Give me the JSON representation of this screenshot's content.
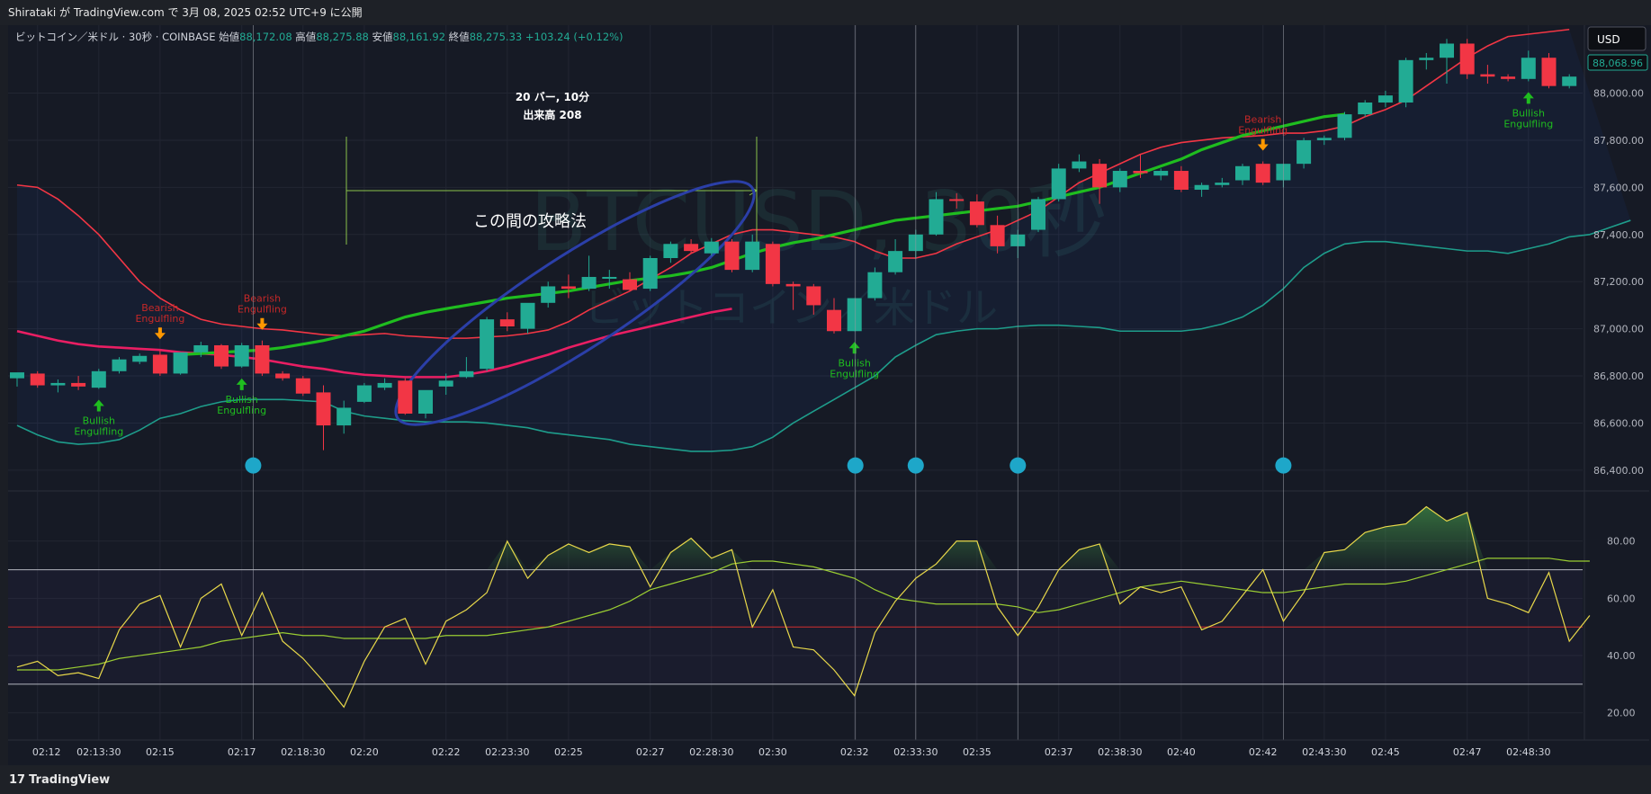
{
  "header": {
    "publish_line": "Shirataki が TradingView.com で 3月 08, 2025 02:52 UTC+9 に公開"
  },
  "legend": {
    "symbol": "ビットコイン／米ドル · 30秒 · COINBASE",
    "open_label": "始値",
    "open": "88,172.08",
    "high_label": "高値",
    "high": "88,275.88",
    "low_label": "安値",
    "low": "88,161.92",
    "close_label": "終値",
    "close": "88,275.33",
    "change": "+103.24 (+0.12%)"
  },
  "currency_button": "USD",
  "last_price_label": "88,068.96",
  "watermark": {
    "symbol": "BTCUSD, 30秒",
    "name": "ビットコイン／米ドル"
  },
  "measure_label": {
    "line1": "20 バー, 10分",
    "line2": "出来高 208"
  },
  "annotation_text": "この間の攻略法",
  "footer_brand": "TradingView",
  "colors": {
    "up": "#22ab94",
    "down": "#f23645",
    "bb_upper": "#f23645",
    "bb_lower": "#1e9d8b",
    "ma_green": "#1fbd1f",
    "ma_pink": "#e91e63",
    "rsi": "#e8d84a",
    "rsi_ma": "#9acd32",
    "bullish": "#1fbd1f",
    "bearish": "#c62828",
    "dot": "#1ea7c9",
    "ellipse": "#2b3fa8"
  },
  "chart_data": {
    "type": "candlestick",
    "symbol": "BTCUSD",
    "interval": "30秒",
    "price_axis": {
      "ticks": [
        86400,
        86600,
        86800,
        87000,
        87200,
        87400,
        87600,
        87800,
        88000
      ],
      "tick_labels": [
        "86,400.00",
        "86,600.00",
        "86,800.00",
        "87,000.00",
        "87,200.00",
        "87,400.00",
        "87,600.00",
        "87,800.00",
        "88,000.00"
      ],
      "range": [
        86350,
        88250
      ]
    },
    "time_axis_labels": [
      {
        "bar": 1,
        "label": "02:12"
      },
      {
        "bar": 4,
        "label": "02:13:30"
      },
      {
        "bar": 7,
        "label": "02:15"
      },
      {
        "bar": 11,
        "label": "02:17"
      },
      {
        "bar": 14,
        "label": "02:18:30"
      },
      {
        "bar": 17,
        "label": "02:20"
      },
      {
        "bar": 21,
        "label": "02:22"
      },
      {
        "bar": 24,
        "label": "02:23:30"
      },
      {
        "bar": 27,
        "label": "02:25"
      },
      {
        "bar": 31,
        "label": "02:27"
      },
      {
        "bar": 34,
        "label": "02:28:30"
      },
      {
        "bar": 37,
        "label": "02:30"
      },
      {
        "bar": 41,
        "label": "02:32"
      },
      {
        "bar": 44,
        "label": "02:33:30"
      },
      {
        "bar": 47,
        "label": "02:35"
      },
      {
        "bar": 51,
        "label": "02:37"
      },
      {
        "bar": 54,
        "label": "02:38:30"
      },
      {
        "bar": 57,
        "label": "02:40"
      },
      {
        "bar": 61,
        "label": "02:42"
      },
      {
        "bar": 64,
        "label": "02:43:30"
      },
      {
        "bar": 67,
        "label": "02:45"
      },
      {
        "bar": 71,
        "label": "02:47"
      },
      {
        "bar": 74,
        "label": "02:48:30"
      }
    ],
    "candles": [
      {
        "o": 86790,
        "h": 86810,
        "l": 86755,
        "c": 86815
      },
      {
        "o": 86810,
        "h": 86820,
        "l": 86750,
        "c": 86760
      },
      {
        "o": 86760,
        "h": 86785,
        "l": 86730,
        "c": 86770
      },
      {
        "o": 86770,
        "h": 86800,
        "l": 86740,
        "c": 86755
      },
      {
        "o": 86750,
        "h": 86830,
        "l": 86745,
        "c": 86820
      },
      {
        "o": 86820,
        "h": 86880,
        "l": 86810,
        "c": 86870
      },
      {
        "o": 86860,
        "h": 86895,
        "l": 86850,
        "c": 86885
      },
      {
        "o": 86890,
        "h": 86910,
        "l": 86800,
        "c": 86810
      },
      {
        "o": 86810,
        "h": 86900,
        "l": 86805,
        "c": 86900
      },
      {
        "o": 86900,
        "h": 86945,
        "l": 86880,
        "c": 86930
      },
      {
        "o": 86930,
        "h": 86935,
        "l": 86830,
        "c": 86840
      },
      {
        "o": 86840,
        "h": 86940,
        "l": 86835,
        "c": 86930
      },
      {
        "o": 86930,
        "h": 86950,
        "l": 86800,
        "c": 86810
      },
      {
        "o": 86810,
        "h": 86820,
        "l": 86780,
        "c": 86790
      },
      {
        "o": 86790,
        "h": 86800,
        "l": 86715,
        "c": 86725
      },
      {
        "o": 86730,
        "h": 86760,
        "l": 86485,
        "c": 86590
      },
      {
        "o": 86590,
        "h": 86695,
        "l": 86555,
        "c": 86665
      },
      {
        "o": 86690,
        "h": 86770,
        "l": 86685,
        "c": 86760
      },
      {
        "o": 86750,
        "h": 86790,
        "l": 86740,
        "c": 86770
      },
      {
        "o": 86780,
        "h": 86790,
        "l": 86635,
        "c": 86640
      },
      {
        "o": 86640,
        "h": 86735,
        "l": 86620,
        "c": 86740
      },
      {
        "o": 86755,
        "h": 86810,
        "l": 86720,
        "c": 86780
      },
      {
        "o": 86795,
        "h": 86880,
        "l": 86790,
        "c": 86820
      },
      {
        "o": 86830,
        "h": 87050,
        "l": 86820,
        "c": 87040
      },
      {
        "o": 87040,
        "h": 87070,
        "l": 86990,
        "c": 87010
      },
      {
        "o": 87000,
        "h": 87100,
        "l": 86980,
        "c": 87110
      },
      {
        "o": 87110,
        "h": 87200,
        "l": 87090,
        "c": 87180
      },
      {
        "o": 87180,
        "h": 87230,
        "l": 87130,
        "c": 87170
      },
      {
        "o": 87170,
        "h": 87310,
        "l": 87160,
        "c": 87220
      },
      {
        "o": 87220,
        "h": 87250,
        "l": 87170,
        "c": 87220
      },
      {
        "o": 87210,
        "h": 87240,
        "l": 87160,
        "c": 87165
      },
      {
        "o": 87170,
        "h": 87310,
        "l": 87160,
        "c": 87300
      },
      {
        "o": 87300,
        "h": 87370,
        "l": 87280,
        "c": 87360
      },
      {
        "o": 87360,
        "h": 87380,
        "l": 87320,
        "c": 87330
      },
      {
        "o": 87320,
        "h": 87385,
        "l": 87310,
        "c": 87370
      },
      {
        "o": 87370,
        "h": 87380,
        "l": 87240,
        "c": 87250
      },
      {
        "o": 87250,
        "h": 87400,
        "l": 87240,
        "c": 87370
      },
      {
        "o": 87360,
        "h": 87370,
        "l": 87180,
        "c": 87190
      },
      {
        "o": 87190,
        "h": 87200,
        "l": 87080,
        "c": 87180
      },
      {
        "o": 87180,
        "h": 87190,
        "l": 87060,
        "c": 87100
      },
      {
        "o": 87080,
        "h": 87130,
        "l": 86980,
        "c": 86990
      },
      {
        "o": 86990,
        "h": 87130,
        "l": 86990,
        "c": 87130
      },
      {
        "o": 87130,
        "h": 87260,
        "l": 87120,
        "c": 87240
      },
      {
        "o": 87240,
        "h": 87380,
        "l": 87230,
        "c": 87330
      },
      {
        "o": 87330,
        "h": 87420,
        "l": 87300,
        "c": 87400
      },
      {
        "o": 87400,
        "h": 87580,
        "l": 87395,
        "c": 87550
      },
      {
        "o": 87550,
        "h": 87575,
        "l": 87510,
        "c": 87545
      },
      {
        "o": 87540,
        "h": 87570,
        "l": 87430,
        "c": 87440
      },
      {
        "o": 87440,
        "h": 87480,
        "l": 87320,
        "c": 87350
      },
      {
        "o": 87350,
        "h": 87420,
        "l": 87300,
        "c": 87400
      },
      {
        "o": 87420,
        "h": 87560,
        "l": 87410,
        "c": 87550
      },
      {
        "o": 87550,
        "h": 87700,
        "l": 87540,
        "c": 87680
      },
      {
        "o": 87680,
        "h": 87740,
        "l": 87665,
        "c": 87710
      },
      {
        "o": 87700,
        "h": 87720,
        "l": 87530,
        "c": 87600
      },
      {
        "o": 87600,
        "h": 87680,
        "l": 87580,
        "c": 87670
      },
      {
        "o": 87670,
        "h": 87740,
        "l": 87640,
        "c": 87660
      },
      {
        "o": 87650,
        "h": 87680,
        "l": 87630,
        "c": 87670
      },
      {
        "o": 87670,
        "h": 87690,
        "l": 87580,
        "c": 87590
      },
      {
        "o": 87590,
        "h": 87620,
        "l": 87560,
        "c": 87610
      },
      {
        "o": 87610,
        "h": 87640,
        "l": 87600,
        "c": 87620
      },
      {
        "o": 87630,
        "h": 87700,
        "l": 87610,
        "c": 87690
      },
      {
        "o": 87700,
        "h": 87710,
        "l": 87610,
        "c": 87620
      },
      {
        "o": 87630,
        "h": 87700,
        "l": 87600,
        "c": 87700
      },
      {
        "o": 87700,
        "h": 87810,
        "l": 87680,
        "c": 87800
      },
      {
        "o": 87800,
        "h": 87820,
        "l": 87780,
        "c": 87810
      },
      {
        "o": 87810,
        "h": 87920,
        "l": 87800,
        "c": 87910
      },
      {
        "o": 87910,
        "h": 87970,
        "l": 87900,
        "c": 87960
      },
      {
        "o": 87960,
        "h": 88010,
        "l": 87940,
        "c": 87990
      },
      {
        "o": 87960,
        "h": 88150,
        "l": 87940,
        "c": 88140
      },
      {
        "o": 88140,
        "h": 88170,
        "l": 88100,
        "c": 88150
      },
      {
        "o": 88150,
        "h": 88230,
        "l": 88040,
        "c": 88210
      },
      {
        "o": 88210,
        "h": 88230,
        "l": 88060,
        "c": 88080
      },
      {
        "o": 88080,
        "h": 88120,
        "l": 88040,
        "c": 88070
      },
      {
        "o": 88070,
        "h": 88080,
        "l": 88050,
        "c": 88060
      },
      {
        "o": 88060,
        "h": 88180,
        "l": 88050,
        "c": 88150
      },
      {
        "o": 88150,
        "h": 88170,
        "l": 88020,
        "c": 88030
      },
      {
        "o": 88030,
        "h": 88080,
        "l": 88020,
        "c": 88070
      }
    ],
    "bb_upper": [
      87610,
      87600,
      87550,
      87480,
      87400,
      87300,
      87200,
      87130,
      87080,
      87040,
      87020,
      87010,
      87000,
      86995,
      86985,
      86975,
      86970,
      86975,
      86980,
      86970,
      86965,
      86960,
      86960,
      86965,
      86970,
      86980,
      86995,
      87030,
      87080,
      87120,
      87160,
      87210,
      87260,
      87320,
      87360,
      87400,
      87420,
      87420,
      87410,
      87400,
      87390,
      87370,
      87330,
      87300,
      87300,
      87320,
      87360,
      87390,
      87420,
      87460,
      87500,
      87560,
      87620,
      87660,
      87700,
      87740,
      87770,
      87790,
      87800,
      87810,
      87815,
      87820,
      87830,
      87830,
      87840,
      87860,
      87900,
      87930,
      87970,
      88030,
      88090,
      88150,
      88200,
      88240,
      88250,
      88260,
      88270
    ],
    "bb_lower": [
      86590,
      86550,
      86520,
      86510,
      86515,
      86530,
      86570,
      86620,
      86640,
      86670,
      86690,
      86700,
      86700,
      86700,
      86695,
      86690,
      86650,
      86630,
      86620,
      86610,
      86605,
      86605,
      86605,
      86600,
      86590,
      86580,
      86560,
      86550,
      86540,
      86530,
      86510,
      86500,
      86490,
      86480,
      86480,
      86485,
      86500,
      86540,
      86600,
      86650,
      86700,
      86750,
      86800,
      86880,
      86930,
      86975,
      86990,
      87000,
      87000,
      87010,
      87015,
      87015,
      87010,
      87005,
      86990,
      86990,
      86990,
      86990,
      87000,
      87020,
      87050,
      87100,
      87170,
      87260,
      87320,
      87360,
      87370,
      87370,
      87360,
      87350,
      87340,
      87330,
      87330,
      87320,
      87340,
      87360,
      87390,
      87400,
      87430,
      87460
    ],
    "sma_long": [
      86990,
      86970,
      86950,
      86935,
      86925,
      86920,
      86915,
      86910,
      86900,
      86895,
      86890,
      86880,
      86870,
      86855,
      86840,
      86830,
      86815,
      86805,
      86800,
      86795,
      86795,
      86795,
      86805,
      86820,
      86840,
      86865,
      86890,
      86920,
      86945,
      86970,
      86990,
      87010,
      87030,
      87050,
      87070,
      87085
    ],
    "ema_trend": [
      86890,
      86895,
      86900,
      86905,
      86910,
      86920,
      86935,
      86950,
      86970,
      86990,
      87020,
      87050,
      87070,
      87085,
      87100,
      87115,
      87130,
      87140,
      87150,
      87160,
      87175,
      87190,
      87205,
      87215,
      87225,
      87240,
      87260,
      87290,
      87320,
      87345,
      87365,
      87380,
      87400,
      87420,
      87440,
      87460,
      87470,
      87480,
      87490,
      87500,
      87510,
      87520,
      87540,
      87560,
      87580,
      87600,
      87630,
      87660,
      87690,
      87720,
      87760,
      87790,
      87820,
      87840,
      87860,
      87880,
      87900,
      87910
    ],
    "ema_trend_start_bar": 8,
    "signals": [
      {
        "bar": 4,
        "type": "Bullish",
        "label": "Bullish\nEngulfling"
      },
      {
        "bar": 7,
        "type": "Bearish",
        "label": "Bearish\nEngulfling"
      },
      {
        "bar": 11,
        "type": "Bullish",
        "label": "Bullish\nEngulfling"
      },
      {
        "bar": 12,
        "type": "Bearish",
        "label": "Bearish\nEngulfling"
      },
      {
        "bar": 41,
        "type": "Bullish",
        "label": "Bullish\nEngulfling"
      },
      {
        "bar": 61,
        "type": "Bearish",
        "label": "Bearish\nEngulfling"
      },
      {
        "bar": 74,
        "type": "Bullish",
        "label": "Bullish\nEngulfling"
      }
    ],
    "dots_bars": [
      12,
      41,
      44,
      49,
      62
    ],
    "rsi": {
      "ticks": [
        20,
        40,
        60,
        80
      ],
      "tick_labels": [
        "20.00",
        "40.00",
        "60.00",
        "80.00"
      ],
      "range": [
        13,
        95
      ],
      "upper_band": 70,
      "lower_band": 30,
      "mid": 50,
      "values": [
        36,
        38,
        33,
        34,
        32,
        49,
        58,
        61,
        43,
        60,
        65,
        47,
        62,
        45,
        39,
        31,
        22,
        38,
        50,
        53,
        37,
        52,
        56,
        62,
        80,
        67,
        75,
        79,
        76,
        79,
        78,
        64,
        76,
        81,
        74,
        77,
        50,
        63,
        43,
        42,
        35,
        26,
        48,
        59,
        67,
        72,
        80,
        80,
        57,
        47,
        57,
        70,
        77,
        79,
        58,
        64,
        62,
        64,
        49,
        52,
        61,
        70,
        52,
        62,
        76,
        77,
        83,
        85,
        86,
        92,
        87,
        90,
        60,
        58,
        55,
        69,
        45,
        54
      ],
      "ma": [
        35,
        35,
        35,
        36,
        37,
        39,
        40,
        41,
        42,
        43,
        45,
        46,
        47,
        48,
        47,
        47,
        46,
        46,
        46,
        46,
        46,
        47,
        47,
        47,
        48,
        49,
        50,
        52,
        54,
        56,
        59,
        63,
        65,
        67,
        69,
        72,
        73,
        73,
        72,
        71,
        69,
        67,
        63,
        60,
        59,
        58,
        58,
        58,
        58,
        57,
        55,
        56,
        58,
        60,
        62,
        64,
        65,
        66,
        65,
        64,
        63,
        62,
        62,
        63,
        64,
        65,
        65,
        65,
        66,
        68,
        70,
        72,
        74,
        74,
        74,
        74,
        73,
        73
      ]
    }
  }
}
